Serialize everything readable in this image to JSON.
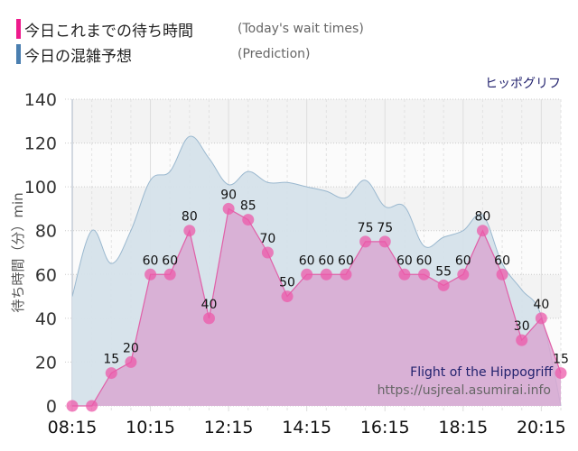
{
  "legend": {
    "items": [
      {
        "label_jp": "今日これまでの待ち時間",
        "label_en": "(Today's wait times)",
        "color": "#ee1a8c"
      },
      {
        "label_jp": "今日の混雑予想",
        "label_en": "(Prediction)",
        "color": "#4a7fb0"
      }
    ]
  },
  "ride_name_jp": "ヒッポグリフ",
  "watermark": {
    "ride_name_en": "Flight of the Hippogriff",
    "url": "https://usjreal.asumirai.info"
  },
  "colors": {
    "actual_line": "#e060a8",
    "actual_fill": "#d9a8d2",
    "actual_marker": "#ec5aaa",
    "prediction_line": "#9ab8cf",
    "prediction_fill": "#d5e1ea",
    "plot_bg": "#f6f6f6"
  },
  "chart_data": {
    "type": "area",
    "title": "",
    "xlabel": "",
    "ylabel": "待ち時間（分）min",
    "ylim": [
      0,
      140
    ],
    "yticks": [
      0,
      20,
      40,
      60,
      80,
      100,
      120,
      140
    ],
    "xtick_labels": [
      "08:15",
      "10:15",
      "12:15",
      "14:15",
      "16:15",
      "18:15",
      "20:15"
    ],
    "grid": true,
    "x": [
      "08:15",
      "08:45",
      "09:15",
      "09:45",
      "10:15",
      "10:45",
      "11:15",
      "11:45",
      "12:15",
      "12:45",
      "13:15",
      "13:45",
      "14:15",
      "14:45",
      "15:15",
      "15:45",
      "16:15",
      "16:45",
      "17:15",
      "17:45",
      "18:15",
      "18:45",
      "19:15",
      "19:45",
      "20:15",
      "20:45"
    ],
    "series": [
      {
        "name": "今日これまでの待ち時間 (Today's wait times)",
        "type": "line+markers",
        "values": [
          0,
          0,
          15,
          20,
          60,
          60,
          80,
          40,
          90,
          85,
          70,
          50,
          60,
          60,
          60,
          75,
          75,
          60,
          60,
          55,
          60,
          80,
          60,
          30,
          40,
          15
        ],
        "labels": [
          "",
          "",
          "15",
          "20",
          "60",
          "60",
          "80",
          "40",
          "90",
          "85",
          "70",
          "50",
          "60",
          "60",
          "60",
          "75",
          "75",
          "60",
          "60",
          "55",
          "60",
          "80",
          "60",
          "30",
          "40",
          "15"
        ]
      },
      {
        "name": "今日の混雑予想 (Prediction)",
        "type": "area",
        "values": [
          50,
          80,
          65,
          80,
          103,
          107,
          123,
          113,
          101,
          107,
          102,
          102,
          100,
          98,
          95,
          103,
          91,
          91,
          73,
          77,
          80,
          87,
          65,
          53,
          41,
          0
        ]
      }
    ]
  }
}
